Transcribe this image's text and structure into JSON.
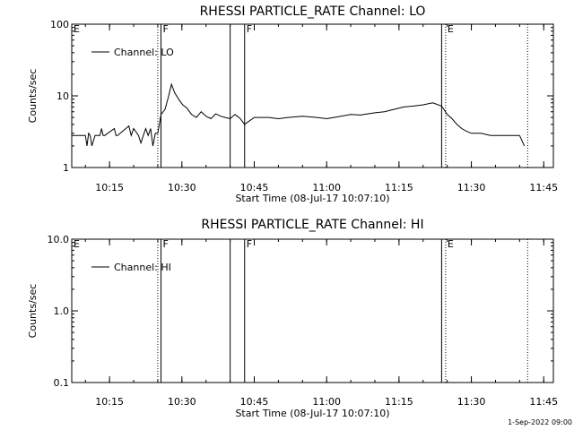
{
  "timestamp": "1-Sep-2022 09:00",
  "chart_data": [
    {
      "type": "line",
      "title": "RHESSI PARTICLE_RATE Channel: LO",
      "xlabel": "Start Time (08-Jul-17 10:07:10)",
      "ylabel": "Counts/sec",
      "yscale": "log",
      "ylim": [
        1,
        100
      ],
      "xlim": [
        "10:07:10",
        "11:47:00"
      ],
      "x_ticks": [
        "10:15",
        "10:30",
        "10:45",
        "11:00",
        "11:15",
        "11:30",
        "11:45"
      ],
      "y_ticks": [
        "1",
        "10",
        "100"
      ],
      "legend": {
        "label": "Channel: LO",
        "placement": "top-left"
      },
      "markers": [
        {
          "label": "E",
          "time": "10:07:10",
          "style": "none"
        },
        {
          "label": "",
          "time": "10:25:00",
          "style": "dotted"
        },
        {
          "label": "F",
          "time": "10:25:40",
          "style": "solid"
        },
        {
          "label": "",
          "time": "10:40:00",
          "style": "solid"
        },
        {
          "label": "F",
          "time": "10:43:00",
          "style": "solid"
        },
        {
          "label": "",
          "time": "11:23:50",
          "style": "solid"
        },
        {
          "label": "E",
          "time": "11:24:40",
          "style": "dotted"
        },
        {
          "label": "",
          "time": "11:41:40",
          "style": "dotted"
        }
      ],
      "series": [
        {
          "name": "Channel: LO",
          "x": [
            "10:07:10",
            "10:10:00",
            "10:10:20",
            "10:10:40",
            "10:11:00",
            "10:11:20",
            "10:12:00",
            "10:13:00",
            "10:13:20",
            "10:13:40",
            "10:14:00",
            "10:16:00",
            "10:16:20",
            "10:16:40",
            "10:19:00",
            "10:19:30",
            "10:20:00",
            "10:21:00",
            "10:21:30",
            "10:22:00",
            "10:22:30",
            "10:23:00",
            "10:23:30",
            "10:24:00",
            "10:24:30",
            "10:25:00",
            "10:25:40",
            "10:26:30",
            "10:27:10",
            "10:27:50",
            "10:28:30",
            "10:29:20",
            "10:30:10",
            "10:31:00",
            "10:32:00",
            "10:33:00",
            "10:34:00",
            "10:35:00",
            "10:36:00",
            "10:37:00",
            "10:38:00",
            "10:39:00",
            "10:40:00",
            "10:41:00",
            "10:42:00",
            "10:43:00",
            "10:45:00",
            "10:48:00",
            "10:50:00",
            "10:52:00",
            "10:55:00",
            "10:58:00",
            "11:00:00",
            "11:03:00",
            "11:05:00",
            "11:07:00",
            "11:10:00",
            "11:12:00",
            "11:14:00",
            "11:16:00",
            "11:18:00",
            "11:20:00",
            "11:22:00",
            "11:23:50",
            "11:25:00",
            "11:26:00",
            "11:27:00",
            "11:28:00",
            "11:29:00",
            "11:30:00",
            "11:32:00",
            "11:34:00",
            "11:36:00",
            "11:38:00",
            "11:39:00",
            "11:40:00",
            "11:41:00"
          ],
          "y": [
            2.8,
            2.8,
            2.0,
            3.0,
            2.8,
            2.0,
            2.8,
            2.8,
            3.5,
            2.8,
            2.8,
            3.5,
            2.8,
            2.8,
            3.8,
            2.8,
            3.5,
            2.8,
            2.2,
            2.8,
            3.5,
            2.8,
            3.5,
            2.0,
            3.0,
            3.0,
            5.5,
            6.5,
            9.5,
            14.5,
            11.0,
            9.0,
            7.5,
            6.8,
            5.5,
            5.0,
            6.0,
            5.2,
            4.8,
            5.6,
            5.2,
            5.0,
            4.8,
            5.5,
            4.9,
            4.0,
            5.0,
            5.0,
            4.8,
            5.0,
            5.2,
            5.0,
            4.8,
            5.2,
            5.5,
            5.4,
            5.8,
            6.0,
            6.5,
            7.0,
            7.2,
            7.5,
            8.0,
            7.2,
            5.5,
            4.8,
            4.0,
            3.5,
            3.2,
            3.0,
            3.0,
            2.8,
            2.8,
            2.8,
            2.8,
            2.8,
            2.0
          ]
        }
      ]
    },
    {
      "type": "line",
      "title": "RHESSI PARTICLE_RATE Channel: HI",
      "xlabel": "Start Time (08-Jul-17 10:07:10)",
      "ylabel": "Counts/sec",
      "yscale": "log",
      "ylim": [
        0.1,
        10
      ],
      "xlim": [
        "10:07:10",
        "11:47:00"
      ],
      "x_ticks": [
        "10:15",
        "10:30",
        "10:45",
        "11:00",
        "11:15",
        "11:30",
        "11:45"
      ],
      "y_ticks": [
        "0.1",
        "1.0",
        "10.0"
      ],
      "legend": {
        "label": "Channel: HI",
        "placement": "top-left"
      },
      "markers": [
        {
          "label": "E",
          "time": "10:07:10",
          "style": "none"
        },
        {
          "label": "",
          "time": "10:25:00",
          "style": "dotted"
        },
        {
          "label": "F",
          "time": "10:25:40",
          "style": "solid"
        },
        {
          "label": "",
          "time": "10:40:00",
          "style": "solid"
        },
        {
          "label": "F",
          "time": "10:43:00",
          "style": "solid"
        },
        {
          "label": "",
          "time": "11:23:50",
          "style": "solid"
        },
        {
          "label": "E",
          "time": "11:24:40",
          "style": "dotted"
        },
        {
          "label": "",
          "time": "11:41:40",
          "style": "dotted"
        }
      ],
      "series": [
        {
          "name": "Channel: HI",
          "x": [],
          "y": []
        }
      ]
    }
  ]
}
